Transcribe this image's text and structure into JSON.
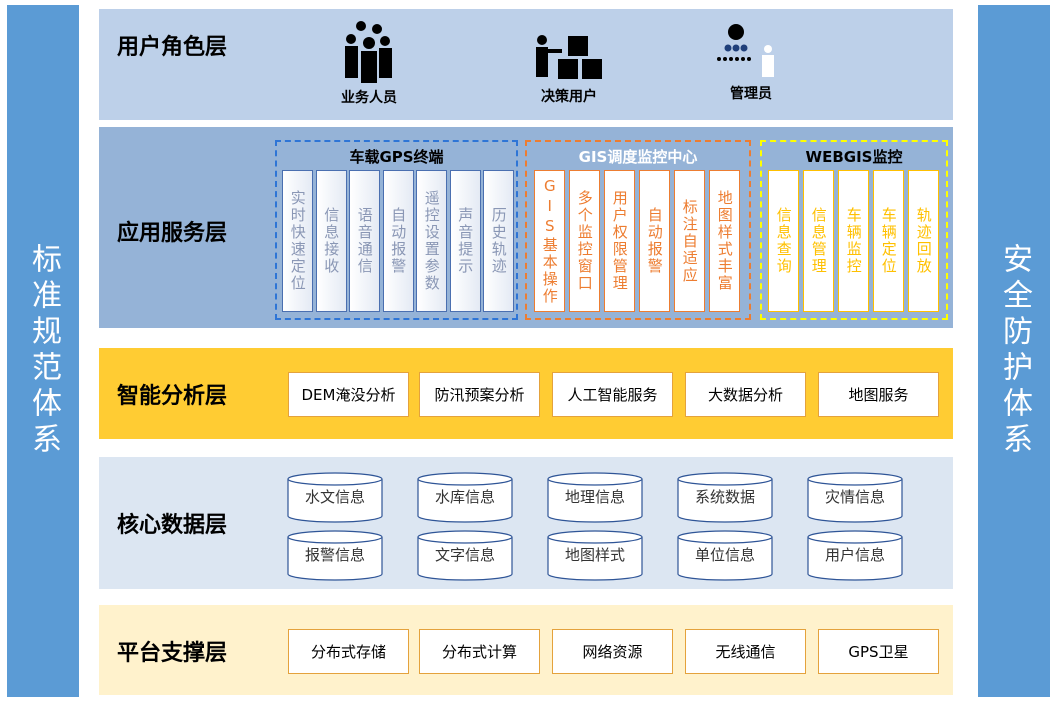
{
  "left_bar": "标准规范体系",
  "right_bar": "安全防护体系",
  "user_layer": {
    "title": "用户角色层",
    "roles": [
      {
        "label": "业务人员",
        "icon": "group-people-icon"
      },
      {
        "label": "决策用户",
        "icon": "presenter-boxes-icon"
      },
      {
        "label": "管理员",
        "icon": "admin-hierarchy-icon"
      }
    ]
  },
  "app_layer": {
    "title": "应用服务层",
    "groups": [
      {
        "title": "车载GPS终端",
        "color": "#2E75D6",
        "items": [
          "实时快速定位",
          "信息接收",
          "语音通信",
          "自动报警",
          "遥控设置参数",
          "声音提示",
          "历史轨迹"
        ]
      },
      {
        "title": "GIS调度监控中心",
        "color": "#ED7D31",
        "items": [
          "GIS基本操作",
          "多个监控窗口",
          "用户权限管理",
          "自动报警",
          "标注自适应",
          "地图样式丰富"
        ]
      },
      {
        "title": "WEBGIS监控",
        "color": "#FFFF00",
        "items": [
          "信息查询",
          "信息管理",
          "车辆监控",
          "车辆定位",
          "轨迹回放"
        ]
      }
    ]
  },
  "ai_layer": {
    "title": "智能分析层",
    "items": [
      "DEM淹没分析",
      "防汛预案分析",
      "人工智能服务",
      "大数据分析",
      "地图服务"
    ]
  },
  "data_layer": {
    "title": "核心数据层",
    "items": [
      "水文信息",
      "水库信息",
      "地理信息",
      "系统数据",
      "灾情信息",
      "报警信息",
      "文字信息",
      "地图样式",
      "单位信息",
      "用户信息"
    ]
  },
  "platform_layer": {
    "title": "平台支撑层",
    "items": [
      "分布式存储",
      "分布式计算",
      "网络资源",
      "无线通信",
      "GPS卫星"
    ]
  }
}
